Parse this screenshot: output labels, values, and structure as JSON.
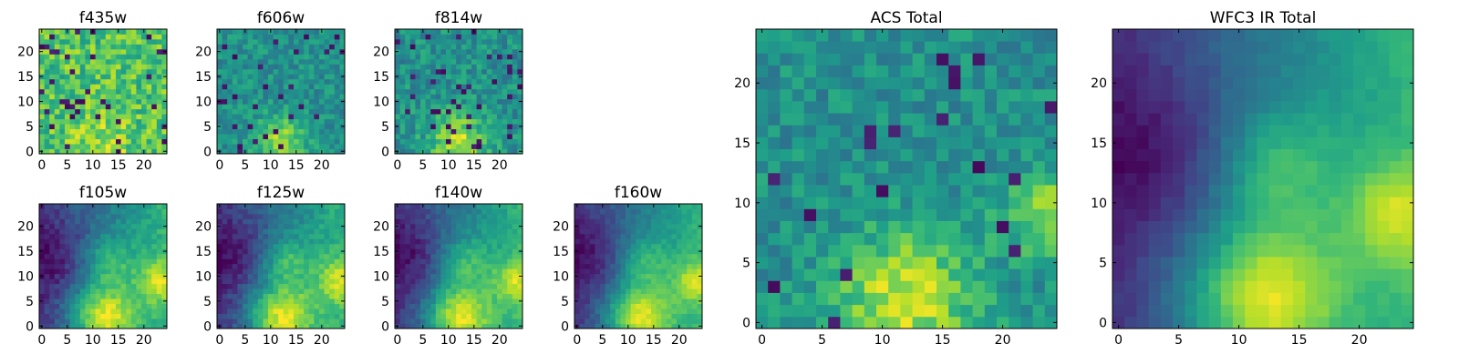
{
  "figure": {
    "description_title": ""
  },
  "colormap": {
    "name": "viridis",
    "stops": [
      "#440154",
      "#482878",
      "#3e4a89",
      "#31688e",
      "#26828e",
      "#1f9e89",
      "#35b779",
      "#6ece58",
      "#b5de2b",
      "#fde725"
    ]
  },
  "chart_data": [
    {
      "type": "heatmap",
      "title": "f435w",
      "grid_size": 25,
      "xticks": [
        0,
        5,
        10,
        15,
        20
      ],
      "yticks": [
        0,
        5,
        10,
        15,
        20
      ],
      "xlim": [
        -0.5,
        24.5
      ],
      "ylim": [
        -0.5,
        24.5
      ],
      "grid": false,
      "pattern": "noise",
      "seed": 11,
      "mean": 0.72,
      "noise": 0.18,
      "dark_fraction": 0.06,
      "blob": {
        "cx": 12,
        "cy": 2,
        "amp": 0.15,
        "sigma": 4
      }
    },
    {
      "type": "heatmap",
      "title": "f606w",
      "grid_size": 25,
      "xticks": [
        0,
        5,
        10,
        15,
        20
      ],
      "yticks": [
        0,
        5,
        10,
        15,
        20
      ],
      "xlim": [
        -0.5,
        24.5
      ],
      "ylim": [
        -0.5,
        24.5
      ],
      "grid": false,
      "pattern": "noise",
      "seed": 23,
      "mean": 0.5,
      "noise": 0.12,
      "dark_fraction": 0.04,
      "blob": {
        "cx": 12,
        "cy": 2,
        "amp": 0.35,
        "sigma": 3.5
      }
    },
    {
      "type": "heatmap",
      "title": "f814w",
      "grid_size": 25,
      "xticks": [
        0,
        5,
        10,
        15,
        20
      ],
      "yticks": [
        0,
        5,
        10,
        15,
        20
      ],
      "xlim": [
        -0.5,
        24.5
      ],
      "ylim": [
        -0.5,
        24.5
      ],
      "grid": false,
      "pattern": "noise",
      "seed": 37,
      "mean": 0.5,
      "noise": 0.14,
      "dark_fraction": 0.06,
      "blob": {
        "cx": 12,
        "cy": 2,
        "amp": 0.4,
        "sigma": 4
      }
    },
    {
      "type": "heatmap",
      "title": "f105w",
      "grid_size": 25,
      "xticks": [
        0,
        5,
        10,
        15,
        20
      ],
      "yticks": [
        0,
        5,
        10,
        15,
        20
      ],
      "xlim": [
        -0.5,
        24.5
      ],
      "ylim": [
        -0.5,
        24.5
      ],
      "grid": false,
      "pattern": "ir",
      "seed": 41,
      "noise": 0.07
    },
    {
      "type": "heatmap",
      "title": "f125w",
      "grid_size": 25,
      "xticks": [
        0,
        5,
        10,
        15,
        20
      ],
      "yticks": [
        0,
        5,
        10,
        15,
        20
      ],
      "xlim": [
        -0.5,
        24.5
      ],
      "ylim": [
        -0.5,
        24.5
      ],
      "grid": false,
      "pattern": "ir",
      "seed": 53,
      "noise": 0.07
    },
    {
      "type": "heatmap",
      "title": "f140w",
      "grid_size": 25,
      "xticks": [
        0,
        5,
        10,
        15,
        20
      ],
      "yticks": [
        0,
        5,
        10,
        15,
        20
      ],
      "xlim": [
        -0.5,
        24.5
      ],
      "ylim": [
        -0.5,
        24.5
      ],
      "grid": false,
      "pattern": "ir",
      "seed": 67,
      "noise": 0.06
    },
    {
      "type": "heatmap",
      "title": "f160w",
      "grid_size": 25,
      "xticks": [
        0,
        5,
        10,
        15,
        20
      ],
      "yticks": [
        0,
        5,
        10,
        15,
        20
      ],
      "xlim": [
        -0.5,
        24.5
      ],
      "ylim": [
        -0.5,
        24.5
      ],
      "grid": false,
      "pattern": "ir",
      "seed": 79,
      "noise": 0.05
    },
    {
      "type": "heatmap",
      "title": "ACS Total",
      "grid_size": 25,
      "xticks": [
        0,
        5,
        10,
        15,
        20
      ],
      "yticks": [
        0,
        5,
        10,
        15,
        20
      ],
      "xlim": [
        -0.5,
        24.5
      ],
      "ylim": [
        -0.5,
        24.5
      ],
      "grid": false,
      "pattern": "noise",
      "seed": 97,
      "mean": 0.5,
      "noise": 0.12,
      "dark_fraction": 0.03,
      "blob": {
        "cx": 12,
        "cy": 2,
        "amp": 0.42,
        "sigma": 4
      },
      "blob2": {
        "cx": 24,
        "cy": 9,
        "amp": 0.35,
        "sigma": 2.5
      }
    },
    {
      "type": "heatmap",
      "title": "WFC3 IR Total",
      "grid_size": 25,
      "xticks": [
        0,
        5,
        10,
        15,
        20
      ],
      "yticks": [
        0,
        5,
        10,
        15,
        20
      ],
      "xlim": [
        -0.5,
        24.5
      ],
      "ylim": [
        -0.5,
        24.5
      ],
      "grid": false,
      "pattern": "ir",
      "seed": 101,
      "noise": 0.03
    }
  ]
}
